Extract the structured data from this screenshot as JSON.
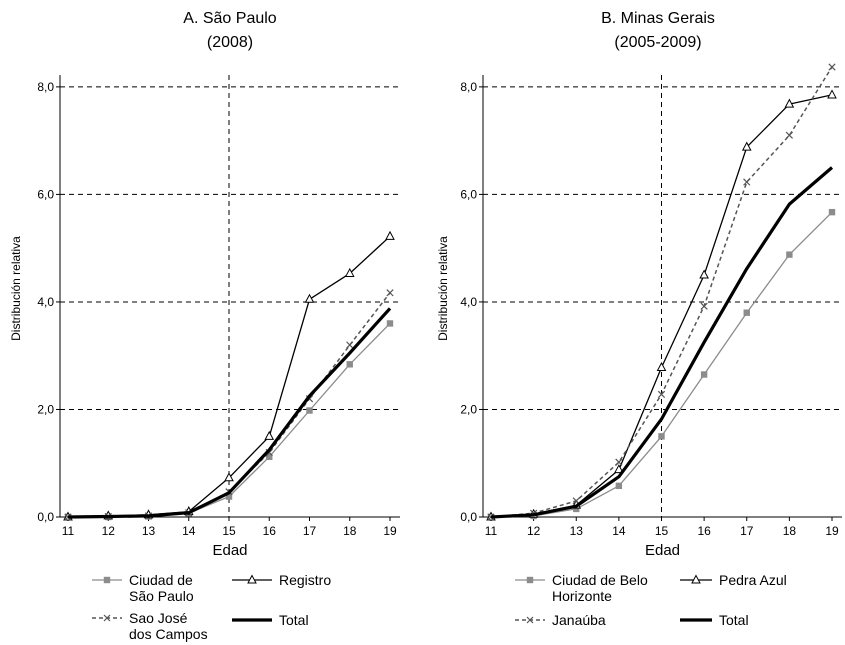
{
  "chart_data": [
    {
      "type": "line",
      "title": "A.  São  Paulo",
      "subtitle": "(2008)",
      "xlabel": "Edad",
      "ylabel": "Distribución relativa",
      "x": [
        11,
        12,
        13,
        14,
        15,
        16,
        17,
        18,
        19
      ],
      "xticks": [
        "11",
        "12",
        "13",
        "14",
        "15",
        "16",
        "17",
        "18",
        "19"
      ],
      "yticks": [
        "0,0",
        "2,0",
        "4,0",
        "6,0",
        "8,0"
      ],
      "ytick_values": [
        0,
        2,
        4,
        6,
        8
      ],
      "ylim": [
        0,
        8.5
      ],
      "reference_line_x": 15,
      "grid": "horizontal dashed",
      "legend_placement": "bottom",
      "series": [
        {
          "name": "Ciudad de São Paulo",
          "values": [
            0.0,
            0.0,
            0.01,
            0.07,
            0.38,
            1.12,
            1.98,
            2.84,
            3.6
          ],
          "color": "#8c8c8c",
          "style": "solid-square"
        },
        {
          "name": "Registro",
          "values": [
            0.0,
            0.02,
            0.04,
            0.1,
            0.73,
            1.5,
            4.05,
            4.53,
            5.22
          ],
          "color": "#000000",
          "style": "solid-triangle"
        },
        {
          "name": "Sao José dos Campos",
          "values": [
            0.0,
            0.01,
            0.02,
            0.08,
            0.47,
            1.2,
            2.2,
            3.2,
            4.17
          ],
          "color": "#555555",
          "style": "dashed-x"
        },
        {
          "name": "Total",
          "values": [
            0.0,
            0.01,
            0.02,
            0.08,
            0.45,
            1.25,
            2.25,
            3.05,
            3.88
          ],
          "color": "#000000",
          "style": "thick"
        }
      ]
    },
    {
      "type": "line",
      "title": "B.  Minas  Gerais",
      "subtitle": "(2005-2009)",
      "xlabel": "Edad",
      "ylabel": "Distribución relativa",
      "x": [
        11,
        12,
        13,
        14,
        15,
        16,
        17,
        18,
        19
      ],
      "xticks": [
        "11",
        "12",
        "13",
        "14",
        "15",
        "16",
        "17",
        "18",
        "19"
      ],
      "yticks": [
        "0,0",
        "2,0",
        "4,0",
        "6,0",
        "8,0"
      ],
      "ytick_values": [
        0,
        2,
        4,
        6,
        8
      ],
      "ylim": [
        0,
        8.5
      ],
      "reference_line_x": 15,
      "grid": "horizontal dashed",
      "legend_placement": "bottom",
      "series": [
        {
          "name": "Ciudad de Belo Horizonte",
          "values": [
            0.0,
            0.02,
            0.15,
            0.58,
            1.5,
            2.65,
            3.8,
            4.88,
            5.67
          ],
          "color": "#8c8c8c",
          "style": "solid-square"
        },
        {
          "name": "Pedra Azul",
          "values": [
            0.0,
            0.05,
            0.22,
            0.88,
            2.78,
            4.5,
            6.88,
            7.68,
            7.85
          ],
          "color": "#000000",
          "style": "solid-triangle"
        },
        {
          "name": "Janaúba",
          "values": [
            0.0,
            0.07,
            0.3,
            1.02,
            2.28,
            3.92,
            6.23,
            7.1,
            8.37
          ],
          "color": "#555555",
          "style": "dashed-x"
        },
        {
          "name": "Total",
          "values": [
            0.0,
            0.04,
            0.2,
            0.75,
            1.82,
            3.25,
            4.62,
            5.82,
            6.5
          ],
          "color": "#000000",
          "style": "thick"
        }
      ]
    }
  ],
  "legends": [
    {
      "items": [
        {
          "line1": "Ciudad de",
          "line2": "São Paulo",
          "style": "solid-square"
        },
        {
          "line1": "Registro",
          "line2": "",
          "style": "solid-triangle"
        },
        {
          "line1": "Sao José",
          "line2": "dos Campos",
          "style": "dashed-x"
        },
        {
          "line1": "Total",
          "line2": "",
          "style": "thick"
        }
      ]
    },
    {
      "items": [
        {
          "line1": "Ciudad de Belo",
          "line2": "Horizonte",
          "style": "solid-square"
        },
        {
          "line1": "Pedra Azul",
          "line2": "",
          "style": "solid-triangle"
        },
        {
          "line1": "Janaúba",
          "line2": "",
          "style": "dashed-x"
        },
        {
          "line1": "Total",
          "line2": "",
          "style": "thick"
        }
      ]
    }
  ]
}
